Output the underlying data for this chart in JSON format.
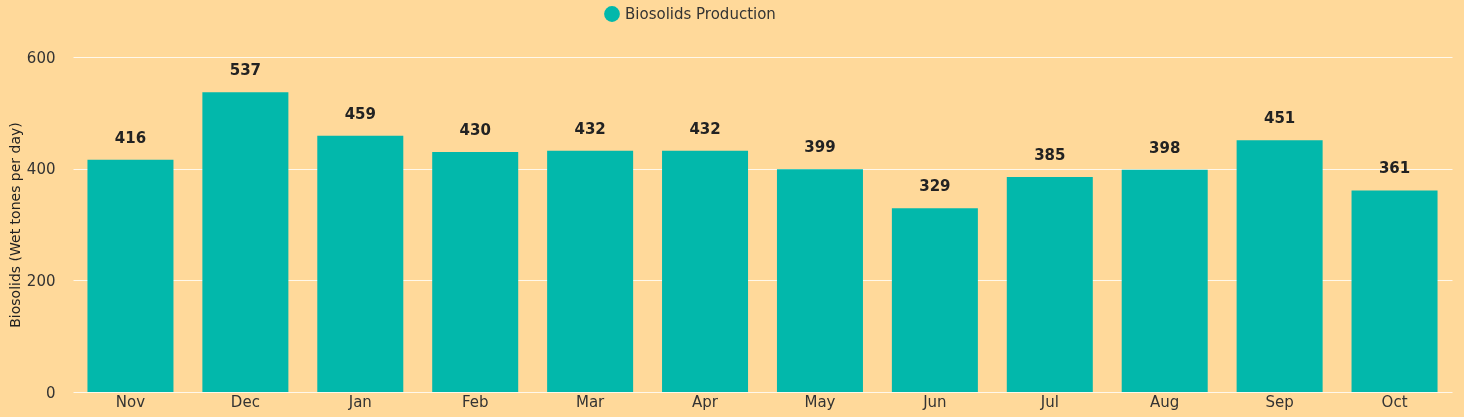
{
  "chart_data": {
    "type": "bar",
    "ylabel": "Biosolids (Wet tones per day)",
    "categories": [
      "Nov",
      "Dec",
      "Jan",
      "Feb",
      "Mar",
      "Apr",
      "May",
      "Jun",
      "Jul",
      "Aug",
      "Sep",
      "Oct"
    ],
    "series": [
      {
        "name": "Biosolids Production",
        "color": "#02b8ab",
        "values": [
          416,
          537,
          459,
          430,
          432,
          432,
          399,
          329,
          385,
          398,
          451,
          361
        ]
      }
    ],
    "ylim": [
      0,
      600
    ],
    "yticks": [
      0,
      200,
      400,
      600
    ],
    "grid": "y",
    "legend": "top",
    "data_labels": true
  }
}
